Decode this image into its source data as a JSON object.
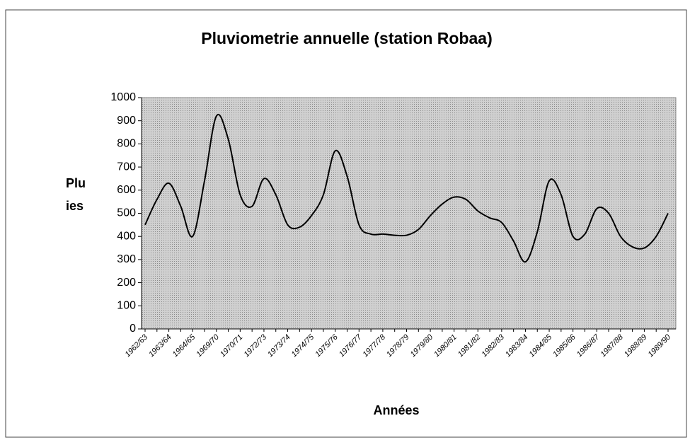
{
  "chart_data": {
    "type": "line",
    "title": "Pluviometrie annuelle (station Robaa)",
    "xlabel": "Années",
    "ylabel": [
      "Plu",
      "ies"
    ],
    "categories": [
      "1962/63",
      null,
      "1963/64",
      null,
      "1964/65",
      null,
      "1969/70",
      null,
      "1970/71",
      null,
      "1972/73",
      null,
      "1973/74",
      null,
      "1974/75",
      null,
      "1975/76",
      null,
      "1976/77",
      null,
      "1977/78",
      null,
      "1978/79",
      null,
      "1979/80",
      null,
      "1980/81",
      null,
      "1981/82",
      null,
      "1982/83",
      null,
      "1983/84",
      null,
      "1984/85",
      null,
      "1985/86",
      null,
      "1986/87",
      null,
      "1987/88",
      null,
      "1988/89",
      null,
      "1989/90"
    ],
    "series": [
      {
        "color": "#000000",
        "values": [
          450,
          560,
          630,
          530,
          400,
          640,
          920,
          820,
          580,
          530,
          650,
          580,
          450,
          440,
          490,
          580,
          770,
          660,
          450,
          410,
          410,
          405,
          405,
          430,
          490,
          540,
          570,
          560,
          510,
          480,
          460,
          380,
          290,
          420,
          640,
          580,
          400,
          410,
          520,
          500,
          400,
          355,
          350,
          400,
          500
        ]
      }
    ],
    "ylim": [
      0,
      1000
    ],
    "yticks": [
      0,
      100,
      200,
      300,
      400,
      500,
      600,
      700,
      800,
      900,
      1000
    ]
  }
}
